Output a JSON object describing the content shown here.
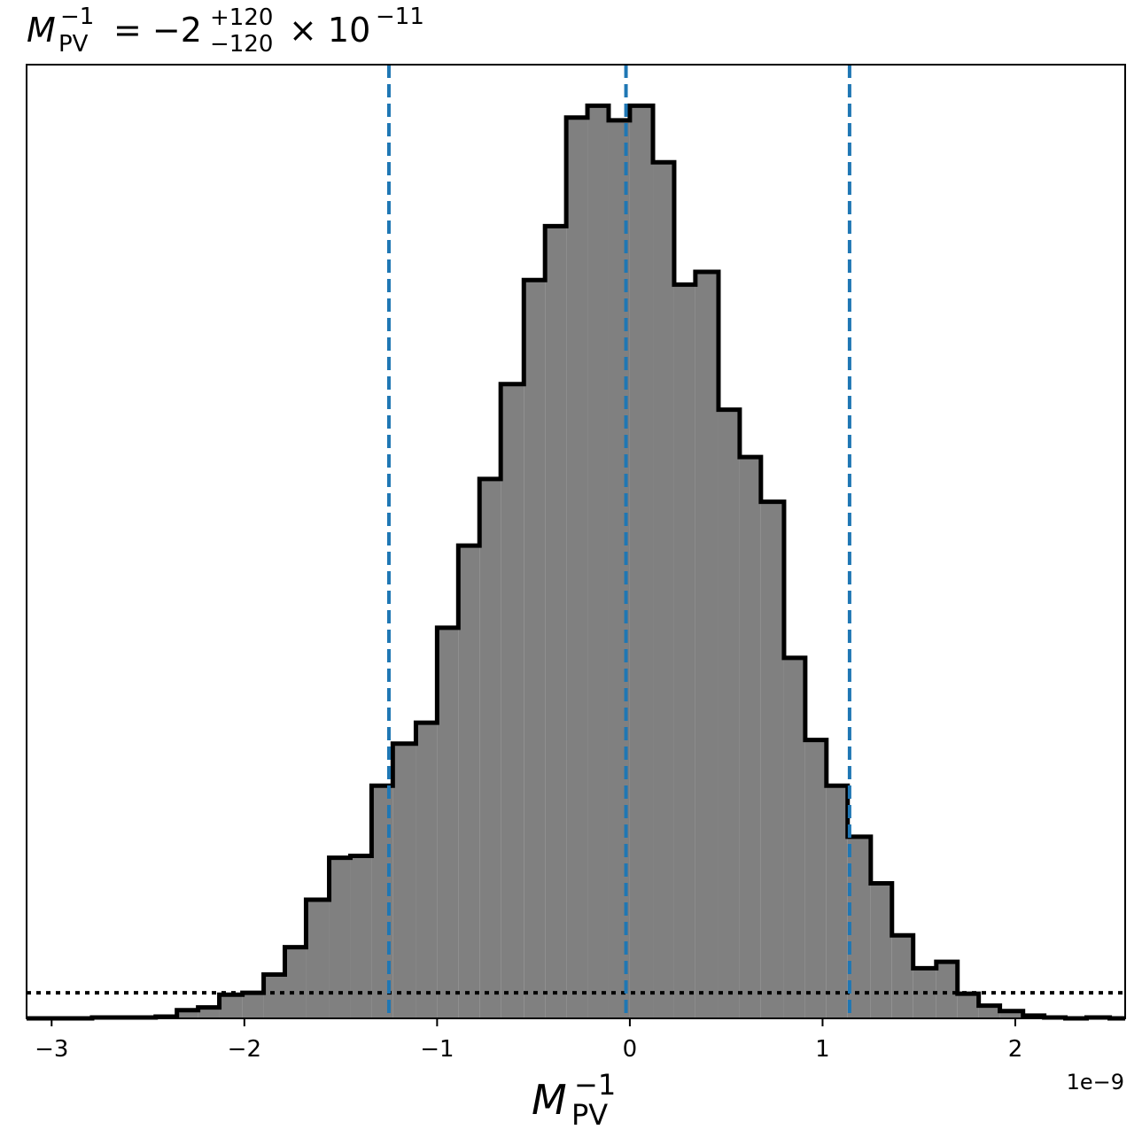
{
  "chart_data": {
    "type": "histogram",
    "title": {
      "symbol": "M",
      "symbol_sub": "PV",
      "symbol_sup": "−1",
      "equals": "= −2",
      "err_plus": "+120",
      "err_minus": "−120",
      "times": "× 10",
      "exponent": "−11"
    },
    "xlabel": {
      "symbol": "M",
      "sub": "PV",
      "sup": "−1"
    },
    "x_offset_text": "1e−9",
    "xlim": [
      -3.13e-09,
      2.57e-09
    ],
    "ylim": [
      0,
      1.045
    ],
    "x_ticks": [
      {
        "value": -3e-09,
        "label": "−3"
      },
      {
        "value": -2e-09,
        "label": "−2"
      },
      {
        "value": -1e-09,
        "label": "−1"
      },
      {
        "value": 0,
        "label": "0"
      },
      {
        "value": 1e-09,
        "label": "1"
      },
      {
        "value": 2e-09,
        "label": "2"
      }
    ],
    "bin_edges": [
      -3.13e-09,
      -2.79e-09,
      -2.68e-09,
      -2.57e-09,
      -2.46e-09,
      -2.35e-09,
      -2.24e-09,
      -2.13e-09,
      -2.01e-09,
      -1.9e-09,
      -1.79e-09,
      -1.68e-09,
      -1.56e-09,
      -1.45e-09,
      -1.34e-09,
      -1.23e-09,
      -1.11e-09,
      -1e-09,
      -8.9e-10,
      -7.8e-10,
      -6.7e-10,
      -5.5e-10,
      -4.4e-10,
      -3.3e-10,
      -2.2e-10,
      -1.1e-10,
      0.0,
      1.2e-10,
      2.3e-10,
      3.4e-10,
      4.6e-10,
      5.7e-10,
      6.8e-10,
      8e-10,
      9.1e-10,
      1.02e-09,
      1.13e-09,
      1.25e-09,
      1.36e-09,
      1.47e-09,
      1.59e-09,
      1.7e-09,
      1.81e-09,
      1.92e-09,
      2.04e-09,
      2.15e-09,
      2.26e-09,
      2.37e-09,
      2.49e-09,
      2.57e-09
    ],
    "counts": [
      0,
      0.001,
      0.001,
      0.001,
      0.002,
      0.009,
      0.012,
      0.026,
      0.028,
      0.048,
      0.078,
      0.13,
      0.176,
      0.178,
      0.255,
      0.301,
      0.324,
      0.428,
      0.518,
      0.591,
      0.695,
      0.809,
      0.868,
      0.987,
      1.0,
      0.984,
      1.0,
      0.938,
      0.804,
      0.818,
      0.667,
      0.615,
      0.566,
      0.395,
      0.305,
      0.255,
      0.199,
      0.148,
      0.091,
      0.055,
      0.062,
      0.027,
      0.014,
      0.008,
      0.003,
      0.001,
      0,
      0.001,
      0
    ],
    "reference_lines": [
      {
        "x": -1.25e-09,
        "style": "dashed",
        "color": "#1f77b4",
        "role": "lower"
      },
      {
        "x": -2e-11,
        "style": "dashed",
        "color": "#1f77b4",
        "role": "median"
      },
      {
        "x": 1.14e-09,
        "style": "dashed",
        "color": "#1f77b4",
        "role": "upper"
      }
    ],
    "horizontal_line": {
      "y": 0.028,
      "style": "dotted",
      "color": "#000000"
    },
    "fill_color": "#808080",
    "edge_color": "#000000",
    "grid": false,
    "legend": "none"
  }
}
